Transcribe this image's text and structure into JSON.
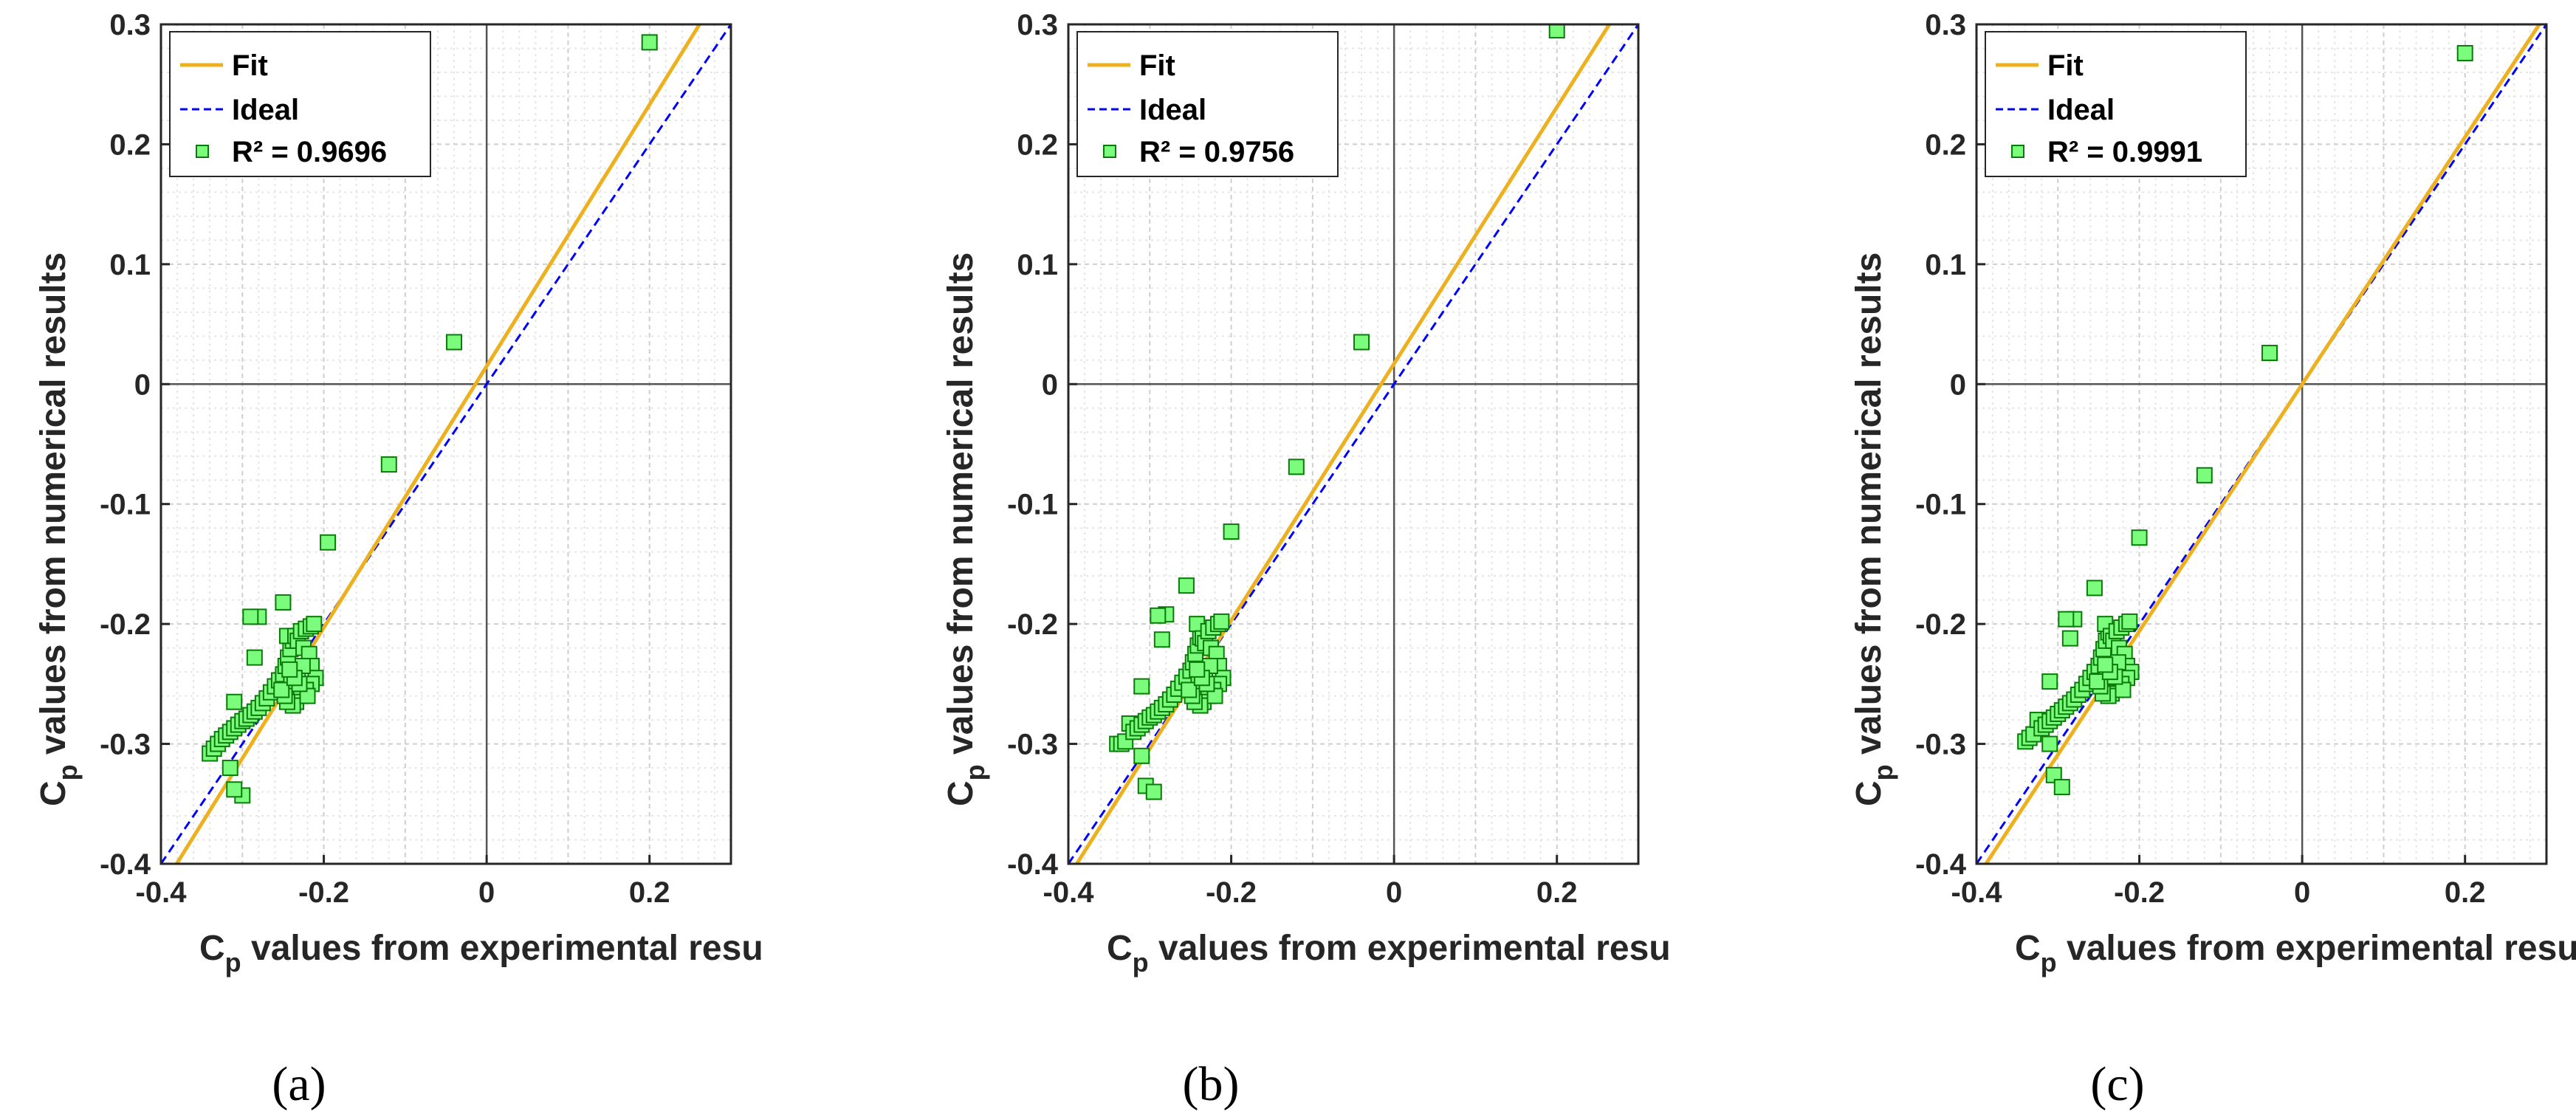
{
  "colors": {
    "fit": "#EDB120",
    "ideal": "#0000FF",
    "marker_fill": "#7CFC7C",
    "marker_edge": "#0A7A0A",
    "grid_major": "#CFCFCF",
    "grid_minor": "#E6E6E6",
    "axis_line": "#262626"
  },
  "chart_data": [
    {
      "type": "scatter",
      "panel_label": "(a)",
      "xlabel_main": "C",
      "xlabel_sub": "p",
      "xlabel_rest": " values from experimental resu",
      "ylabel_main": "C",
      "ylabel_sub": "p",
      "ylabel_rest": " values from numerical results",
      "xlim": [
        -0.4,
        0.3
      ],
      "ylim": [
        -0.4,
        0.3
      ],
      "xticks": [
        "-0.4",
        "-0.2",
        "0",
        "0.2"
      ],
      "yticks": [
        "0.3",
        "0.2",
        "0.1",
        "0",
        "-0.1",
        "-0.2",
        "-0.3",
        "-0.4"
      ],
      "grid": "on",
      "legend_position": "top-left",
      "legend": {
        "fit": "Fit",
        "ideal": "Ideal",
        "points": "R² = 0.9696"
      },
      "fit_line": {
        "slope": 1.09,
        "intercept": 0.015
      },
      "points": [
        [
          0.2,
          0.285
        ],
        [
          -0.04,
          0.035
        ],
        [
          -0.12,
          -0.067
        ],
        [
          -0.195,
          -0.132
        ],
        [
          -0.25,
          -0.182
        ],
        [
          -0.28,
          -0.194
        ],
        [
          -0.29,
          -0.194
        ],
        [
          -0.285,
          -0.228
        ],
        [
          -0.31,
          -0.265
        ],
        [
          -0.3,
          -0.343
        ],
        [
          -0.31,
          -0.338
        ],
        [
          -0.315,
          -0.32
        ],
        [
          -0.34,
          -0.308
        ],
        [
          -0.335,
          -0.304
        ],
        [
          -0.33,
          -0.3
        ],
        [
          -0.325,
          -0.296
        ],
        [
          -0.32,
          -0.293
        ],
        [
          -0.315,
          -0.29
        ],
        [
          -0.31,
          -0.287
        ],
        [
          -0.305,
          -0.284
        ],
        [
          -0.3,
          -0.281
        ],
        [
          -0.295,
          -0.279
        ],
        [
          -0.29,
          -0.276
        ],
        [
          -0.285,
          -0.273
        ],
        [
          -0.28,
          -0.27
        ],
        [
          -0.275,
          -0.266
        ],
        [
          -0.27,
          -0.262
        ],
        [
          -0.265,
          -0.257
        ],
        [
          -0.26,
          -0.252
        ],
        [
          -0.255,
          -0.247
        ],
        [
          -0.25,
          -0.242
        ],
        [
          -0.247,
          -0.235
        ],
        [
          -0.244,
          -0.228
        ],
        [
          -0.241,
          -0.221
        ],
        [
          -0.238,
          -0.214
        ],
        [
          -0.245,
          -0.21
        ],
        [
          -0.235,
          -0.21
        ],
        [
          -0.232,
          -0.214
        ],
        [
          -0.228,
          -0.206
        ],
        [
          -0.222,
          -0.204
        ],
        [
          -0.216,
          -0.202
        ],
        [
          -0.212,
          -0.2
        ],
        [
          -0.225,
          -0.22
        ],
        [
          -0.218,
          -0.225
        ],
        [
          -0.215,
          -0.235
        ],
        [
          -0.21,
          -0.245
        ],
        [
          -0.215,
          -0.25
        ],
        [
          -0.222,
          -0.255
        ],
        [
          -0.228,
          -0.26
        ],
        [
          -0.234,
          -0.265
        ],
        [
          -0.238,
          -0.268
        ],
        [
          -0.245,
          -0.265
        ],
        [
          -0.24,
          -0.25
        ],
        [
          -0.232,
          -0.24
        ],
        [
          -0.226,
          -0.235
        ],
        [
          -0.22,
          -0.26
        ],
        [
          -0.248,
          -0.26
        ],
        [
          -0.252,
          -0.255
        ],
        [
          -0.23,
          -0.25
        ],
        [
          -0.236,
          -0.245
        ],
        [
          -0.242,
          -0.238
        ]
      ]
    },
    {
      "type": "scatter",
      "panel_label": "(b)",
      "xlabel_main": "C",
      "xlabel_sub": "p",
      "xlabel_rest": " values from experimental resu",
      "ylabel_main": "C",
      "ylabel_sub": "p",
      "ylabel_rest": " values from numerical results",
      "xlim": [
        -0.4,
        0.3
      ],
      "ylim": [
        -0.4,
        0.3
      ],
      "xticks": [
        "-0.4",
        "-0.2",
        "0",
        "0.2"
      ],
      "yticks": [
        "0.3",
        "0.2",
        "0.1",
        "0",
        "-0.1",
        "-0.2",
        "-0.3",
        "-0.4"
      ],
      "grid": "on",
      "legend_position": "top-left",
      "legend": {
        "fit": "Fit",
        "ideal": "Ideal",
        "points": "R² = 0.9756"
      },
      "fit_line": {
        "slope": 1.07,
        "intercept": 0.017
      },
      "points": [
        [
          0.2,
          0.295
        ],
        [
          -0.04,
          0.035
        ],
        [
          -0.12,
          -0.069
        ],
        [
          -0.2,
          -0.123
        ],
        [
          -0.255,
          -0.168
        ],
        [
          -0.28,
          -0.192
        ],
        [
          -0.29,
          -0.193
        ],
        [
          -0.285,
          -0.213
        ],
        [
          -0.31,
          -0.252
        ],
        [
          -0.305,
          -0.335
        ],
        [
          -0.295,
          -0.34
        ],
        [
          -0.31,
          -0.31
        ],
        [
          -0.34,
          -0.3
        ],
        [
          -0.335,
          -0.3
        ],
        [
          -0.33,
          -0.298
        ],
        [
          -0.325,
          -0.283
        ],
        [
          -0.32,
          -0.29
        ],
        [
          -0.315,
          -0.287
        ],
        [
          -0.31,
          -0.284
        ],
        [
          -0.305,
          -0.281
        ],
        [
          -0.3,
          -0.278
        ],
        [
          -0.295,
          -0.276
        ],
        [
          -0.29,
          -0.273
        ],
        [
          -0.285,
          -0.27
        ],
        [
          -0.28,
          -0.267
        ],
        [
          -0.275,
          -0.263
        ],
        [
          -0.27,
          -0.259
        ],
        [
          -0.265,
          -0.254
        ],
        [
          -0.26,
          -0.249
        ],
        [
          -0.255,
          -0.244
        ],
        [
          -0.25,
          -0.239
        ],
        [
          -0.247,
          -0.232
        ],
        [
          -0.244,
          -0.225
        ],
        [
          -0.241,
          -0.218
        ],
        [
          -0.238,
          -0.211
        ],
        [
          -0.242,
          -0.2
        ],
        [
          -0.235,
          -0.212
        ],
        [
          -0.232,
          -0.216
        ],
        [
          -0.228,
          -0.206
        ],
        [
          -0.222,
          -0.203
        ],
        [
          -0.216,
          -0.2
        ],
        [
          -0.212,
          -0.198
        ],
        [
          -0.225,
          -0.22
        ],
        [
          -0.218,
          -0.225
        ],
        [
          -0.215,
          -0.235
        ],
        [
          -0.21,
          -0.245
        ],
        [
          -0.215,
          -0.25
        ],
        [
          -0.222,
          -0.255
        ],
        [
          -0.228,
          -0.26
        ],
        [
          -0.234,
          -0.265
        ],
        [
          -0.238,
          -0.268
        ],
        [
          -0.245,
          -0.265
        ],
        [
          -0.24,
          -0.25
        ],
        [
          -0.232,
          -0.24
        ],
        [
          -0.226,
          -0.235
        ],
        [
          -0.22,
          -0.26
        ],
        [
          -0.248,
          -0.26
        ],
        [
          -0.252,
          -0.255
        ],
        [
          -0.23,
          -0.25
        ],
        [
          -0.236,
          -0.245
        ],
        [
          -0.242,
          -0.238
        ]
      ]
    },
    {
      "type": "scatter",
      "panel_label": "(c)",
      "xlabel_main": "C",
      "xlabel_sub": "p",
      "xlabel_rest": " values from experimental resu",
      "ylabel_main": "C",
      "ylabel_sub": "p",
      "ylabel_rest": " values from numerical results",
      "xlim": [
        -0.4,
        0.3
      ],
      "ylim": [
        -0.4,
        0.3
      ],
      "xticks": [
        "-0.4",
        "-0.2",
        "0",
        "0.2"
      ],
      "yticks": [
        "0.3",
        "0.2",
        "0.1",
        "0",
        "-0.1",
        "-0.2",
        "-0.3",
        "-0.4"
      ],
      "grid": "on",
      "legend_position": "top-left",
      "legend": {
        "fit": "Fit",
        "ideal": "Ideal",
        "points": "R² = 0.9991"
      },
      "fit_line": {
        "slope": 1.03,
        "intercept": 0.0
      },
      "points": [
        [
          0.2,
          0.276
        ],
        [
          -0.04,
          0.026
        ],
        [
          -0.12,
          -0.076
        ],
        [
          -0.2,
          -0.128
        ],
        [
          -0.255,
          -0.17
        ],
        [
          -0.28,
          -0.196
        ],
        [
          -0.29,
          -0.196
        ],
        [
          -0.285,
          -0.212
        ],
        [
          -0.31,
          -0.248
        ],
        [
          -0.305,
          -0.326
        ],
        [
          -0.295,
          -0.336
        ],
        [
          -0.31,
          -0.3
        ],
        [
          -0.34,
          -0.298
        ],
        [
          -0.335,
          -0.295
        ],
        [
          -0.33,
          -0.292
        ],
        [
          -0.325,
          -0.28
        ],
        [
          -0.32,
          -0.287
        ],
        [
          -0.315,
          -0.284
        ],
        [
          -0.31,
          -0.281
        ],
        [
          -0.305,
          -0.278
        ],
        [
          -0.3,
          -0.275
        ],
        [
          -0.295,
          -0.272
        ],
        [
          -0.29,
          -0.269
        ],
        [
          -0.285,
          -0.266
        ],
        [
          -0.28,
          -0.263
        ],
        [
          -0.275,
          -0.259
        ],
        [
          -0.27,
          -0.255
        ],
        [
          -0.265,
          -0.25
        ],
        [
          -0.26,
          -0.245
        ],
        [
          -0.255,
          -0.24
        ],
        [
          -0.25,
          -0.235
        ],
        [
          -0.247,
          -0.228
        ],
        [
          -0.244,
          -0.221
        ],
        [
          -0.241,
          -0.214
        ],
        [
          -0.238,
          -0.207
        ],
        [
          -0.242,
          -0.2
        ],
        [
          -0.235,
          -0.21
        ],
        [
          -0.232,
          -0.214
        ],
        [
          -0.228,
          -0.206
        ],
        [
          -0.222,
          -0.203
        ],
        [
          -0.216,
          -0.2
        ],
        [
          -0.212,
          -0.198
        ],
        [
          -0.225,
          -0.22
        ],
        [
          -0.218,
          -0.225
        ],
        [
          -0.215,
          -0.235
        ],
        [
          -0.21,
          -0.24
        ],
        [
          -0.215,
          -0.245
        ],
        [
          -0.222,
          -0.25
        ],
        [
          -0.228,
          -0.255
        ],
        [
          -0.234,
          -0.258
        ],
        [
          -0.238,
          -0.26
        ],
        [
          -0.245,
          -0.258
        ],
        [
          -0.24,
          -0.245
        ],
        [
          -0.232,
          -0.237
        ],
        [
          -0.226,
          -0.232
        ],
        [
          -0.22,
          -0.255
        ],
        [
          -0.248,
          -0.252
        ],
        [
          -0.252,
          -0.248
        ],
        [
          -0.23,
          -0.244
        ],
        [
          -0.236,
          -0.24
        ],
        [
          -0.242,
          -0.234
        ]
      ]
    }
  ]
}
